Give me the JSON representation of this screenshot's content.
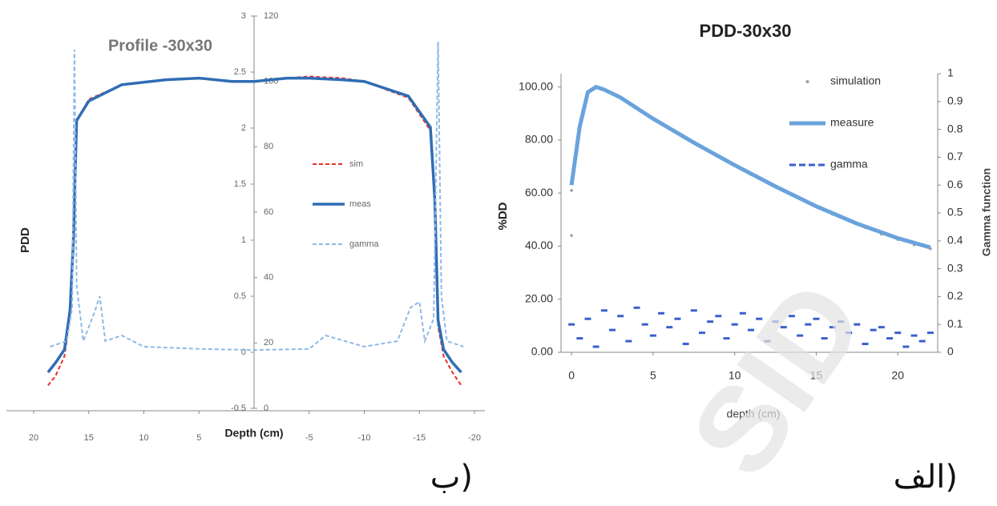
{
  "chart_data": [
    {
      "type": "line",
      "title": "Profile -30x30",
      "x_label": "Depth (cm)",
      "y_label": "PDD",
      "xlim": [
        20,
        -20
      ],
      "xticks": [
        20,
        15,
        10,
        5,
        -5,
        -10,
        -15,
        -20
      ],
      "ylim": [
        -0.5,
        3
      ],
      "yticks": [
        -0.5,
        0,
        0.5,
        1,
        1.5,
        2,
        2.5,
        3
      ],
      "y2lim": [
        0,
        120
      ],
      "y2ticks": [
        0,
        20,
        40,
        60,
        80,
        100,
        120
      ],
      "legend": "center-right",
      "caption": "ب)",
      "series": [
        {
          "name": "sim",
          "color": "#e8302a",
          "style": "dashed",
          "axis": "y2",
          "x": [
            18.7,
            18,
            17.2,
            16.7,
            16.4,
            16.1,
            15,
            12,
            8,
            5,
            2,
            0,
            -3,
            -5,
            -8,
            -10,
            -14,
            -16,
            -16.4,
            -16.7,
            -17.2,
            -18,
            -18.8
          ],
          "values": [
            7,
            10,
            16,
            28,
            50,
            88,
            94.5,
            99,
            100.5,
            101,
            100,
            100,
            101,
            101.5,
            101,
            100,
            95,
            85,
            63,
            25,
            16,
            11,
            7
          ]
        },
        {
          "name": "meas",
          "color": "#2f6db5",
          "style": "solid",
          "axis": "y2",
          "x": [
            18.7,
            18,
            17.2,
            16.7,
            16.4,
            16.1,
            15,
            12,
            8,
            5,
            2,
            0,
            -3,
            -5,
            -8,
            -10,
            -14,
            -16,
            -16.4,
            -16.7,
            -17.2,
            -18,
            -18.8
          ],
          "values": [
            11,
            14,
            18,
            30,
            51,
            88,
            94,
            99,
            100.5,
            101,
            100,
            100,
            101,
            101,
            100.5,
            100,
            95.5,
            86,
            64,
            27,
            18,
            14,
            11
          ]
        },
        {
          "name": "gamma",
          "color": "#8fb8e6",
          "style": "dashed",
          "axis": "y",
          "x": [
            18.5,
            17,
            16.5,
            16.3,
            16.1,
            15.5,
            14.5,
            14,
            13.5,
            12,
            10,
            5,
            0,
            -5,
            -6.5,
            -10,
            -13,
            -14.2,
            -15,
            -15.5,
            -16.3,
            -16.7,
            -17,
            -17.5,
            -19
          ],
          "values": [
            0.05,
            0.1,
            0.4,
            2.7,
            0.6,
            0.1,
            0.35,
            0.5,
            0.1,
            0.15,
            0.05,
            0.03,
            0.02,
            0.03,
            0.15,
            0.05,
            0.1,
            0.4,
            0.45,
            0.1,
            0.3,
            2.77,
            0.5,
            0.1,
            0.05
          ]
        }
      ]
    },
    {
      "type": "line",
      "title": "PDD-30x30",
      "x_label": "depth (cm)",
      "y_label": "%DD",
      "y2_label": "Gamma function",
      "xlim": [
        -0.4,
        22.2
      ],
      "xticks": [
        0,
        5,
        10,
        15,
        20
      ],
      "ylim": [
        0,
        105
      ],
      "yticks": [
        {
          "value": 0,
          "label": "0.00"
        },
        {
          "value": 20,
          "label": "20.00"
        },
        {
          "value": 40,
          "label": "40.00"
        },
        {
          "value": 60,
          "label": "60.00"
        },
        {
          "value": 80,
          "label": "80.00"
        },
        {
          "value": 100,
          "label": "100.00"
        }
      ],
      "y2lim": [
        0,
        1
      ],
      "y2ticks": [
        0,
        0.1,
        0.2,
        0.3,
        0.4,
        0.5,
        0.6,
        0.7,
        0.8,
        0.9,
        1
      ],
      "legend": "top-right",
      "caption": "الف)",
      "watermark": "SID",
      "series": [
        {
          "name": "simulation",
          "color": "#a0a0a0",
          "style": "markers",
          "axis": "y",
          "x": [
            0,
            0,
            0.5,
            1,
            1.5,
            2,
            3,
            4,
            5,
            6,
            7,
            8,
            9,
            10,
            11,
            12,
            13,
            14,
            15,
            16,
            17,
            18,
            19,
            20,
            21,
            22
          ],
          "values": [
            44,
            61,
            85,
            98,
            100,
            99,
            96,
            92,
            88,
            84.5,
            81,
            77.5,
            74,
            70.5,
            67,
            64,
            61,
            58,
            55,
            52,
            49.5,
            47,
            44.5,
            42.5,
            40.5,
            39
          ]
        },
        {
          "name": "measure",
          "color": "#6aa3dc",
          "style": "solid",
          "axis": "y",
          "x": [
            0,
            0.5,
            1,
            1.5,
            2,
            3,
            5,
            7.5,
            10,
            12.5,
            15,
            17.5,
            20,
            22
          ],
          "values": [
            63,
            85,
            98,
            100,
            99,
            96,
            88,
            79,
            70.5,
            62.5,
            55,
            48.5,
            43,
            39.5
          ]
        },
        {
          "name": "gamma",
          "color": "#3a5fcd",
          "style": "dashes",
          "axis": "y2",
          "x": [
            0,
            0.5,
            1,
            1.5,
            2,
            2.5,
            3,
            3.5,
            4,
            4.5,
            5,
            5.5,
            6,
            6.5,
            7,
            7.5,
            8,
            8.5,
            9,
            9.5,
            10,
            10.5,
            11,
            11.5,
            12,
            12.5,
            13,
            13.5,
            14,
            14.5,
            15,
            15.5,
            16,
            16.5,
            17,
            17.5,
            18,
            18.5,
            19,
            19.5,
            20,
            20.5,
            21,
            21.5,
            22
          ],
          "values": [
            0.1,
            0.05,
            0.12,
            0.02,
            0.15,
            0.08,
            0.13,
            0.04,
            0.16,
            0.1,
            0.06,
            0.14,
            0.09,
            0.12,
            0.03,
            0.15,
            0.07,
            0.11,
            0.13,
            0.05,
            0.1,
            0.14,
            0.08,
            0.12,
            0.04,
            0.11,
            0.09,
            0.13,
            0.06,
            0.1,
            0.12,
            0.05,
            0.09,
            0.11,
            0.07,
            0.1,
            0.03,
            0.08,
            0.09,
            0.05,
            0.07,
            0.02,
            0.06,
            0.04,
            0.07
          ]
        }
      ]
    }
  ]
}
